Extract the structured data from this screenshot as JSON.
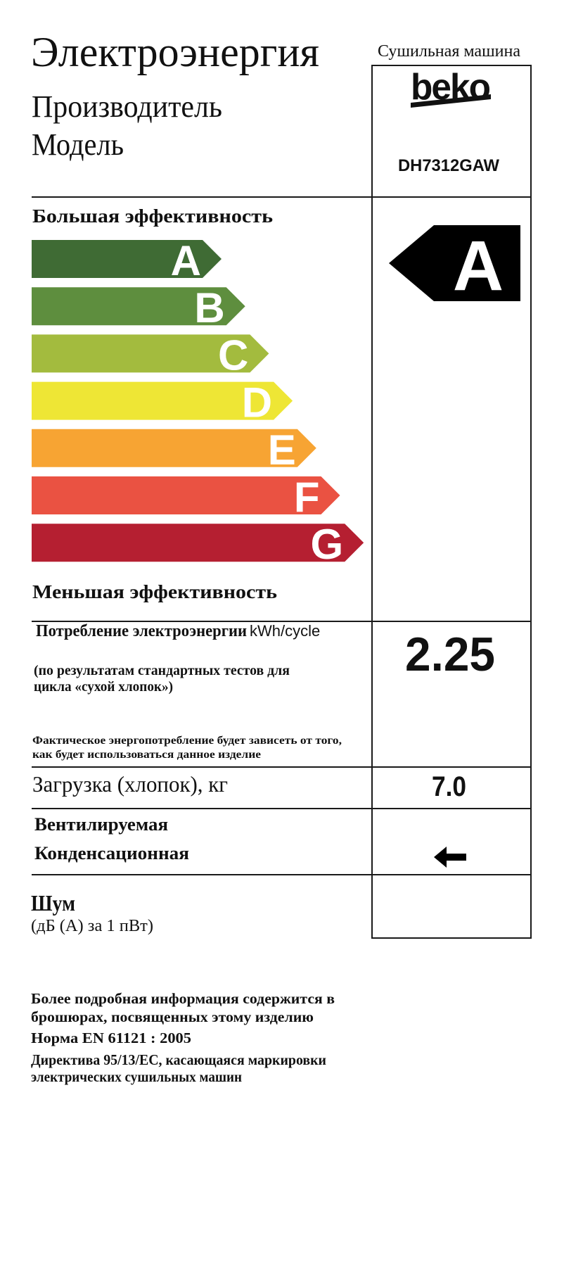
{
  "header": {
    "title": "Электроэнергия",
    "appliance_type": "Сушильная машина",
    "manufacturer_label": "Производитель",
    "model_label": "Модель",
    "brand_logo": "beko",
    "model_value": "DH7312GAW"
  },
  "efficiency": {
    "more_label": "Большая эффективность",
    "less_label": "Меньшая эффективность",
    "classes": [
      {
        "letter": "A",
        "color": "#3f6b34"
      },
      {
        "letter": "B",
        "color": "#5e8e3e"
      },
      {
        "letter": "C",
        "color": "#a3bb3e"
      },
      {
        "letter": "D",
        "color": "#eee635"
      },
      {
        "letter": "E",
        "color": "#f7a433"
      },
      {
        "letter": "F",
        "color": "#ea5242"
      },
      {
        "letter": "G",
        "color": "#b51f31"
      }
    ],
    "rating": "A",
    "rating_color": "#000000"
  },
  "consumption": {
    "label": "Потребление электроэнергии",
    "unit": "kWh/cycle",
    "note_line1": "(по результатам стандартных тестов для",
    "note_line2": "цикла «сухой хлопок»)",
    "disclaimer_line1": "Фактическое энергопотребление будет зависеть от того,",
    "disclaimer_line2": "как будет использоваться данное изделие",
    "value": "2.25"
  },
  "load": {
    "label": "Загрузка (хлопок), кг",
    "value": "7.0"
  },
  "dryer_type": {
    "vented_label": "Вентилируемая",
    "condenser_label": "Конденсационная",
    "selected": "condenser",
    "indicator_icon": "arrow-left-icon"
  },
  "noise": {
    "label": "Шум",
    "unit": "(дБ (А) за 1 пВт)"
  },
  "footer": {
    "line1": "Более подробная информация содержится в",
    "line2": "брошюрах, посвященных этому изделию",
    "norm": "Норма EN 61121 : 2005",
    "directive_line1": "Директива 95/13/EC, касающаяся маркировки",
    "directive_line2": "электрических сушильных машин"
  }
}
